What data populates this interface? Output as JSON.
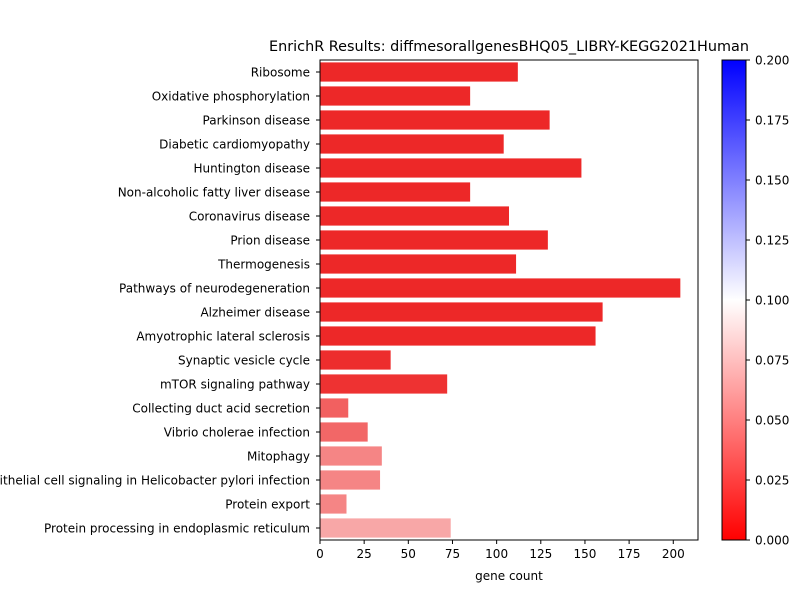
{
  "chart_data": {
    "type": "bar",
    "orientation": "horizontal",
    "title": "EnrichR Results: diffmesorallgenesBHQ05_LIBRY-KEGG2021Human",
    "xlabel": "gene count",
    "ylabel": "",
    "xlim": [
      0,
      214
    ],
    "xticks": [
      0,
      25,
      50,
      75,
      100,
      125,
      150,
      175,
      200
    ],
    "categories": [
      "Ribosome",
      "Oxidative phosphorylation",
      "Parkinson disease",
      "Diabetic cardiomyopathy",
      "Huntington disease",
      "Non-alcoholic fatty liver disease",
      "Coronavirus disease",
      "Prion disease",
      "Thermogenesis",
      "Pathways of neurodegeneration",
      "Alzheimer disease",
      "Amyotrophic lateral sclerosis",
      "Synaptic vesicle cycle",
      "mTOR signaling pathway",
      "Collecting duct acid secretion",
      "Vibrio cholerae infection",
      "Mitophagy",
      "Epithelial cell signaling in Helicobacter pylori infection",
      "Protein export",
      "Protein processing in endoplasmic reticulum"
    ],
    "values": [
      112,
      85,
      130,
      104,
      148,
      85,
      107,
      129,
      111,
      204,
      160,
      156,
      40,
      72,
      16,
      27,
      35,
      34,
      15,
      74
    ],
    "color_values": [
      0.012,
      0.012,
      0.012,
      0.012,
      0.012,
      0.012,
      0.012,
      0.012,
      0.012,
      0.012,
      0.012,
      0.012,
      0.014,
      0.016,
      0.035,
      0.038,
      0.05,
      0.05,
      0.05,
      0.064
    ],
    "colorbar": {
      "min": 0.0,
      "max": 0.2,
      "ticks": [
        0.0,
        0.025,
        0.05,
        0.075,
        0.1,
        0.125,
        0.15,
        0.175,
        0.2
      ],
      "tick_labels": [
        "0.000",
        "0.025",
        "0.050",
        "0.075",
        "0.100",
        "0.125",
        "0.150",
        "0.175",
        "0.200"
      ],
      "colors": {
        "low": "#ff0000",
        "mid": "#ffffff",
        "high": "#0000ff"
      }
    }
  }
}
